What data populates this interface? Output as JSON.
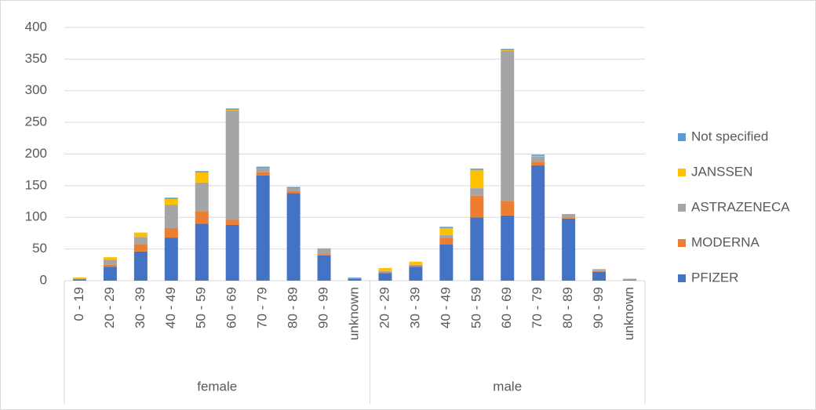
{
  "chart_data": {
    "type": "stacked_bar",
    "groups": [
      {
        "label": "female",
        "categories": [
          "0 - 19",
          "20 - 29",
          "30 - 39",
          "40 - 49",
          "50 - 59",
          "60 - 69",
          "70 - 79",
          "80 - 89",
          "90 - 99",
          "unknown"
        ]
      },
      {
        "label": "male",
        "categories": [
          "20 - 29",
          "30 - 39",
          "40 - 49",
          "50 - 59",
          "60 - 69",
          "70 - 79",
          "80 - 89",
          "90 - 99",
          "unknown"
        ]
      }
    ],
    "series": [
      {
        "name": "PFIZER",
        "color": "#4472c4",
        "values": [
          2,
          22,
          46,
          68,
          90,
          88,
          166,
          138,
          40,
          3,
          12,
          22,
          57,
          100,
          103,
          182,
          98,
          14,
          1
        ]
      },
      {
        "name": "MODERNA",
        "color": "#ed7d31",
        "values": [
          0,
          3,
          11,
          15,
          20,
          8,
          5,
          4,
          2,
          0,
          1,
          2,
          11,
          34,
          23,
          6,
          2,
          1,
          0
        ]
      },
      {
        "name": "ASTRAZENECA",
        "color": "#a5a5a5",
        "values": [
          1,
          8,
          12,
          37,
          45,
          173,
          7,
          4,
          9,
          1,
          2,
          1,
          4,
          12,
          237,
          8,
          4,
          2,
          2
        ]
      },
      {
        "name": "JANSSEN",
        "color": "#ffc000",
        "values": [
          2,
          4,
          7,
          9,
          16,
          1,
          0,
          0,
          0,
          0,
          5,
          5,
          11,
          29,
          1,
          1,
          0,
          0,
          0
        ]
      },
      {
        "name": "Not specified",
        "color": "#5b9bd5",
        "values": [
          0,
          0,
          0,
          2,
          2,
          2,
          2,
          2,
          0,
          1,
          0,
          0,
          2,
          2,
          2,
          2,
          1,
          1,
          0
        ]
      }
    ],
    "ylim": [
      0,
      400
    ],
    "yticks": [
      0,
      50,
      100,
      150,
      200,
      250,
      300,
      350,
      400
    ],
    "grid": true,
    "legend": "right"
  }
}
